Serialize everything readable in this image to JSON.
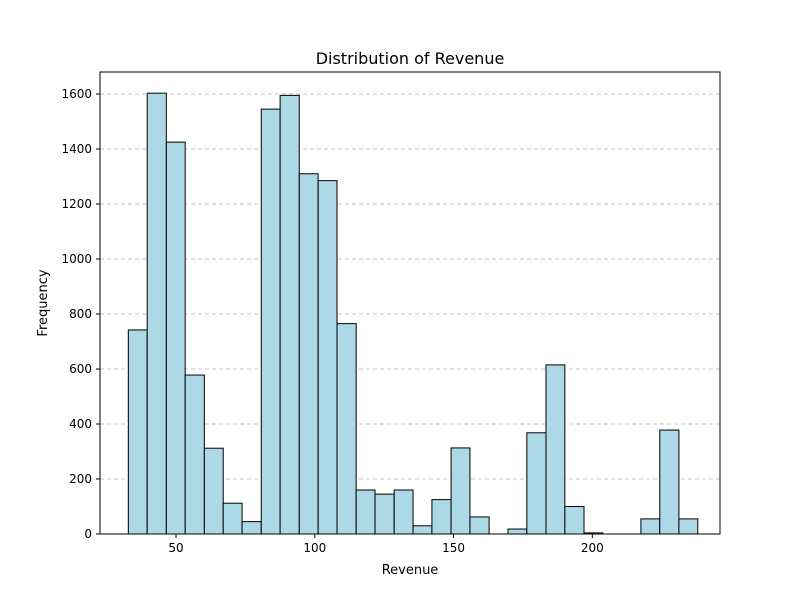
{
  "chart_data": {
    "type": "bar",
    "title": "Distribution of Revenue",
    "xlabel": "Revenue",
    "ylabel": "Frequency",
    "xlim": [
      22.6,
      246.0
    ],
    "ylim": [
      0,
      1680
    ],
    "xticks": [
      50,
      100,
      150,
      200
    ],
    "yticks": [
      0,
      200,
      400,
      600,
      800,
      1000,
      1200,
      1400,
      1600
    ],
    "grid": "y-dashed",
    "bar_color": "#add8e6",
    "edge_color": "#000000",
    "bins": [
      {
        "x0": 32.8,
        "x1": 39.6,
        "value": 742
      },
      {
        "x0": 39.6,
        "x1": 46.5,
        "value": 1603
      },
      {
        "x0": 46.5,
        "x1": 53.3,
        "value": 1425
      },
      {
        "x0": 53.3,
        "x1": 60.2,
        "value": 578
      },
      {
        "x0": 60.2,
        "x1": 67.0,
        "value": 312
      },
      {
        "x0": 67.0,
        "x1": 73.8,
        "value": 112
      },
      {
        "x0": 73.8,
        "x1": 80.7,
        "value": 45
      },
      {
        "x0": 80.7,
        "x1": 87.5,
        "value": 1545
      },
      {
        "x0": 87.5,
        "x1": 94.4,
        "value": 1595
      },
      {
        "x0": 94.4,
        "x1": 101.2,
        "value": 1310
      },
      {
        "x0": 101.2,
        "x1": 108.0,
        "value": 1285
      },
      {
        "x0": 108.0,
        "x1": 114.9,
        "value": 765
      },
      {
        "x0": 114.9,
        "x1": 121.7,
        "value": 160
      },
      {
        "x0": 121.7,
        "x1": 128.6,
        "value": 145
      },
      {
        "x0": 128.6,
        "x1": 135.4,
        "value": 160
      },
      {
        "x0": 135.4,
        "x1": 142.2,
        "value": 30
      },
      {
        "x0": 142.2,
        "x1": 149.1,
        "value": 125
      },
      {
        "x0": 149.1,
        "x1": 155.9,
        "value": 313
      },
      {
        "x0": 155.9,
        "x1": 162.8,
        "value": 62
      },
      {
        "x0": 162.8,
        "x1": 169.6,
        "value": 0
      },
      {
        "x0": 169.6,
        "x1": 176.4,
        "value": 18
      },
      {
        "x0": 176.4,
        "x1": 183.3,
        "value": 368
      },
      {
        "x0": 183.3,
        "x1": 190.1,
        "value": 615
      },
      {
        "x0": 190.1,
        "x1": 197.0,
        "value": 100
      },
      {
        "x0": 197.0,
        "x1": 203.8,
        "value": 4
      },
      {
        "x0": 203.8,
        "x1": 210.6,
        "value": 0
      },
      {
        "x0": 210.6,
        "x1": 217.5,
        "value": 0
      },
      {
        "x0": 217.5,
        "x1": 224.3,
        "value": 55
      },
      {
        "x0": 224.3,
        "x1": 231.2,
        "value": 378
      },
      {
        "x0": 231.2,
        "x1": 238.0,
        "value": 55
      }
    ]
  }
}
